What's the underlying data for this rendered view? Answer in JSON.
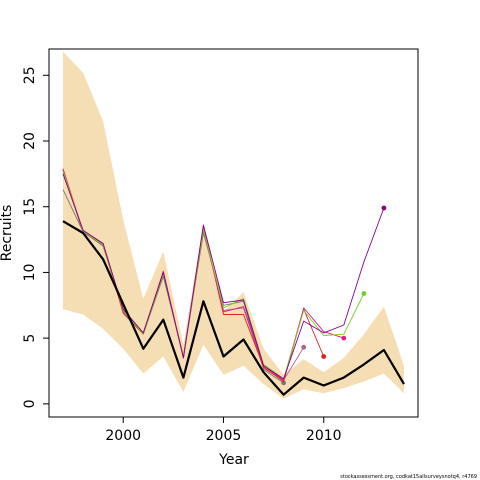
{
  "chart_data": {
    "type": "line",
    "title": "",
    "xlabel": "Year",
    "ylabel": "Recruits",
    "xlim": [
      1996.3,
      2014.7
    ],
    "ylim": [
      -1.0,
      27.0
    ],
    "x_ticks": [
      2000,
      2005,
      2010
    ],
    "y_ticks": [
      0,
      5,
      10,
      15,
      20,
      25
    ],
    "grid": false,
    "legend": "none",
    "band": {
      "fill": "#f5deb3",
      "x": [
        1997,
        1998,
        1999,
        2000,
        2001,
        2002,
        2003,
        2004,
        2005,
        2006,
        2007,
        2008,
        2009,
        2010,
        2011,
        2012,
        2013,
        2014
      ],
      "lower": [
        7.2,
        6.8,
        5.7,
        4.2,
        2.3,
        3.6,
        0.9,
        4.5,
        2.2,
        2.9,
        1.5,
        0.4,
        1.1,
        0.8,
        1.2,
        1.7,
        2.3,
        0.8
      ],
      "upper": [
        26.8,
        25.2,
        21.5,
        14.0,
        8.0,
        11.6,
        4.5,
        13.8,
        7.0,
        8.5,
        4.2,
        2.2,
        3.4,
        2.4,
        3.5,
        5.3,
        7.4,
        2.9
      ]
    },
    "series": [
      {
        "color": "#000000",
        "width": 2.2,
        "x": [
          1997,
          1998,
          1999,
          2000,
          2001,
          2002,
          2003,
          2004,
          2005,
          2006,
          2007,
          2008,
          2009,
          2010,
          2011,
          2012,
          2013,
          2014
        ],
        "values": [
          13.9,
          13.0,
          11.0,
          7.6,
          4.2,
          6.4,
          2.0,
          7.8,
          3.6,
          4.9,
          2.4,
          0.7,
          2.0,
          1.4,
          2.0,
          3.0,
          4.1,
          1.5
        ]
      },
      {
        "color": "#777777",
        "width": 0.9,
        "x": [
          1997,
          1998,
          1999,
          2000,
          2001,
          2002,
          2003,
          2004,
          2005,
          2006,
          2007,
          2008
        ],
        "values": [
          16.3,
          13.1,
          12.0,
          7.2,
          5.3,
          9.7,
          3.6,
          13.0,
          7.5,
          7.8,
          2.6,
          1.6
        ]
      },
      {
        "color": "#b06080",
        "width": 0.9,
        "x": [
          1997,
          1998,
          1999,
          2000,
          2001,
          2002,
          2003,
          2004,
          2005,
          2006,
          2007,
          2008,
          2009
        ],
        "values": [
          17.6,
          13.2,
          12.2,
          7.0,
          5.4,
          10.0,
          3.5,
          13.2,
          7.1,
          7.3,
          2.7,
          1.8,
          4.3
        ]
      },
      {
        "color": "#dd2222",
        "width": 0.9,
        "x": [
          1997,
          1998,
          1999,
          2000,
          2001,
          2002,
          2003,
          2004,
          2005,
          2006,
          2007,
          2008,
          2009,
          2010
        ],
        "values": [
          17.9,
          13.1,
          12.1,
          6.9,
          5.3,
          10.1,
          3.5,
          13.5,
          6.8,
          6.8,
          2.8,
          1.7,
          7.2,
          3.6
        ]
      },
      {
        "color": "#e0208a",
        "width": 0.9,
        "x": [
          1997,
          1998,
          1999,
          2000,
          2001,
          2002,
          2003,
          2004,
          2005,
          2006,
          2007,
          2008,
          2009,
          2010,
          2011
        ],
        "values": [
          17.8,
          13.0,
          12.2,
          7.1,
          5.4,
          10.0,
          3.6,
          13.4,
          7.0,
          7.4,
          2.9,
          1.8,
          7.3,
          5.5,
          5.0
        ]
      },
      {
        "color": "#77cc22",
        "width": 0.9,
        "x": [
          1997,
          1998,
          1999,
          2000,
          2001,
          2002,
          2003,
          2004,
          2005,
          2006,
          2007,
          2008,
          2009,
          2010,
          2011,
          2012
        ],
        "values": [
          17.7,
          13.1,
          12.1,
          7.1,
          5.3,
          9.9,
          3.6,
          13.3,
          7.3,
          8.0,
          3.0,
          1.9,
          7.1,
          5.2,
          5.3,
          8.4
        ]
      },
      {
        "color": "#880088",
        "width": 0.9,
        "x": [
          1997,
          1998,
          1999,
          2000,
          2001,
          2002,
          2003,
          2004,
          2005,
          2006,
          2007,
          2008,
          2009,
          2010,
          2011,
          2012,
          2013
        ],
        "values": [
          17.5,
          13.2,
          12.2,
          7.2,
          5.4,
          10.0,
          3.5,
          13.6,
          7.7,
          7.9,
          2.9,
          1.9,
          6.3,
          5.4,
          6.0,
          10.8,
          14.9
        ]
      }
    ],
    "endpoint_markers": true
  },
  "footnote": "stockassessment.org, codkat15allsurveysnotq4, r4769"
}
